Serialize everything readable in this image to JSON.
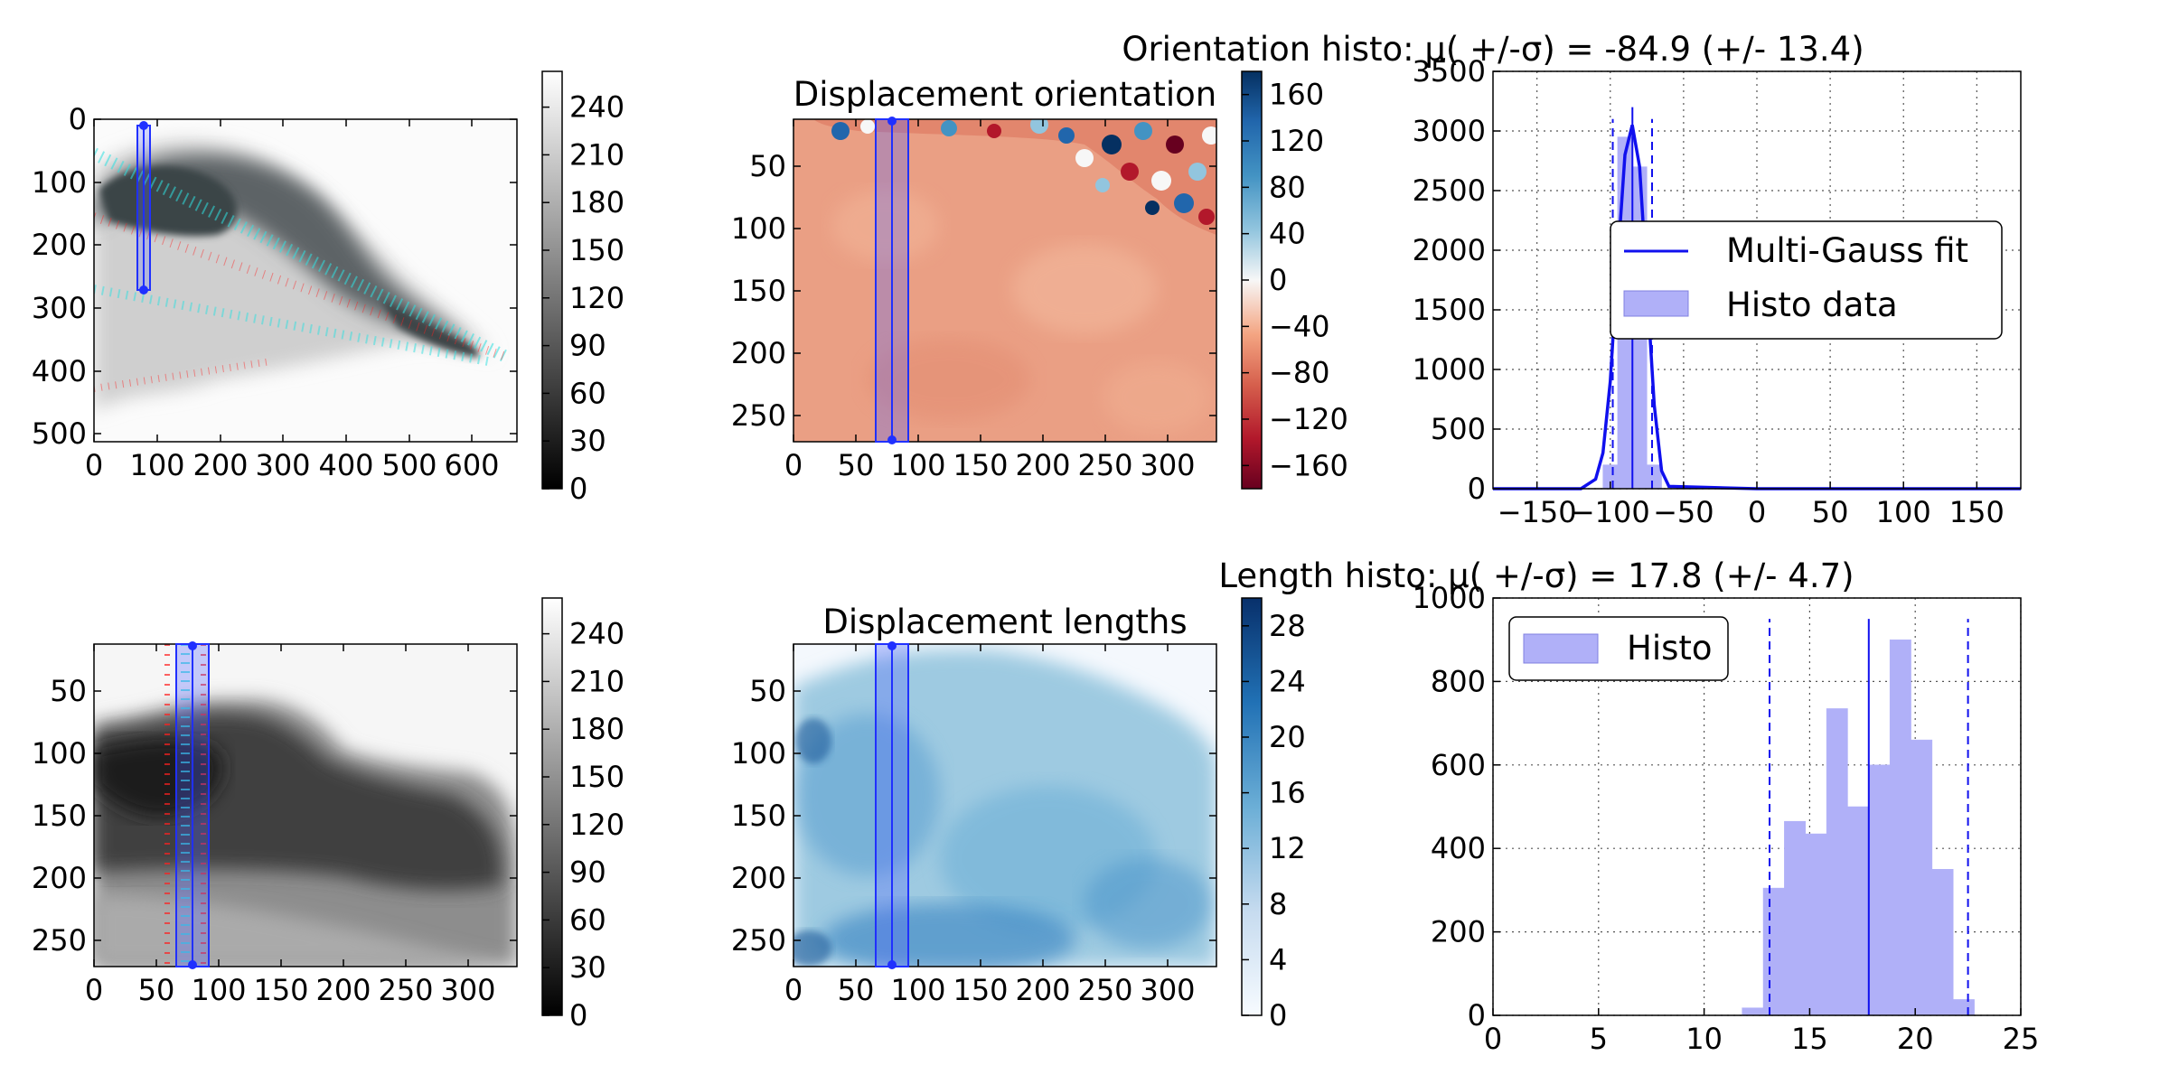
{
  "figure": {
    "colors": {
      "axes": "#000000",
      "grid": "#555555",
      "fit_line": "#1010ee",
      "bar_fill": "#b0b0f8",
      "selection": "#2030ff",
      "vector_red": "#ff2020",
      "vector_cyan": "#30e0e0"
    }
  },
  "image1": {
    "xticks": [
      "0",
      "100",
      "200",
      "300",
      "400",
      "500",
      "600"
    ],
    "yticks": [
      "0",
      "100",
      "200",
      "300",
      "400",
      "500"
    ],
    "colorbar": {
      "colormap": "gray",
      "ticks": [
        "0",
        "30",
        "60",
        "90",
        "120",
        "150",
        "180",
        "210",
        "240"
      ]
    }
  },
  "image2": {
    "title": "Displacement orientation",
    "xticks": [
      "0",
      "50",
      "100",
      "150",
      "200",
      "250",
      "300"
    ],
    "yticks": [
      "50",
      "100",
      "150",
      "200",
      "250"
    ],
    "colorbar": {
      "colormap": "RdBu",
      "ticks": [
        "−160",
        "−120",
        "−80",
        "−40",
        "0",
        "40",
        "80",
        "120",
        "160"
      ]
    }
  },
  "image3": {
    "xticks": [
      "0",
      "50",
      "100",
      "150",
      "200",
      "250",
      "300"
    ],
    "yticks": [
      "50",
      "100",
      "150",
      "200",
      "250"
    ],
    "colorbar": {
      "colormap": "gray",
      "ticks": [
        "0",
        "30",
        "60",
        "90",
        "120",
        "150",
        "180",
        "210",
        "240"
      ]
    }
  },
  "image4": {
    "title": "Displacement lengths",
    "xticks": [
      "0",
      "50",
      "100",
      "150",
      "200",
      "250",
      "300"
    ],
    "yticks": [
      "50",
      "100",
      "150",
      "200",
      "250"
    ],
    "colorbar": {
      "colormap": "Blues",
      "ticks": [
        "0",
        "4",
        "8",
        "12",
        "16",
        "20",
        "24",
        "28"
      ]
    }
  },
  "chart_data": [
    {
      "type": "line",
      "title": "Orientation histo: μ( +/-σ) = -84.9 (+/- 13.4)",
      "xlim": [
        -180,
        180
      ],
      "ylim": [
        0,
        3500
      ],
      "xticks": [
        -150,
        -100,
        -50,
        0,
        50,
        100,
        150
      ],
      "yticks": [
        0,
        500,
        1000,
        1500,
        2000,
        2500,
        3000,
        3500
      ],
      "xtick_labels": [
        "−150",
        "−100",
        "−50",
        "0",
        "50",
        "100",
        "150"
      ],
      "ytick_labels": [
        "0",
        "500",
        "1000",
        "1500",
        "2000",
        "2500",
        "3000",
        "3500"
      ],
      "grid": true,
      "legend_position": "center-right",
      "mean": -84.9,
      "std": 13.4,
      "series": [
        {
          "name": "Multi-Gauss fit",
          "kind": "line",
          "x": [
            -180,
            -120,
            -110,
            -105,
            -100,
            -95,
            -90,
            -85,
            -80,
            -75,
            -70,
            -65,
            -60,
            0,
            180
          ],
          "y": [
            0,
            0,
            80,
            300,
            900,
            1900,
            2800,
            3050,
            2700,
            1700,
            700,
            150,
            20,
            0,
            0
          ]
        },
        {
          "name": "Histo data",
          "kind": "bar",
          "x": [
            -100,
            -90,
            -80,
            -70
          ],
          "y": [
            200,
            2950,
            2700,
            200
          ],
          "width": 10
        }
      ]
    },
    {
      "type": "bar",
      "title": "Length histo: μ( +/-σ) = 17.8 (+/- 4.7)",
      "xlim": [
        0,
        25
      ],
      "ylim": [
        0,
        1000
      ],
      "xticks": [
        0,
        5,
        10,
        15,
        20,
        25
      ],
      "yticks": [
        0,
        200,
        400,
        600,
        800,
        1000
      ],
      "xtick_labels": [
        "0",
        "5",
        "10",
        "15",
        "20",
        "25"
      ],
      "ytick_labels": [
        "0",
        "200",
        "400",
        "600",
        "800",
        "1000"
      ],
      "grid": true,
      "legend_position": "top-left",
      "mean": 17.8,
      "std": 4.7,
      "series": [
        {
          "name": "Histo",
          "kind": "bar",
          "x": [
            12.3,
            13.3,
            14.3,
            15.3,
            16.3,
            17.3,
            18.3,
            19.3,
            20.3,
            21.3,
            22.3
          ],
          "y": [
            18,
            305,
            465,
            435,
            735,
            500,
            600,
            900,
            660,
            350,
            38
          ],
          "width": 1.0
        }
      ]
    }
  ]
}
